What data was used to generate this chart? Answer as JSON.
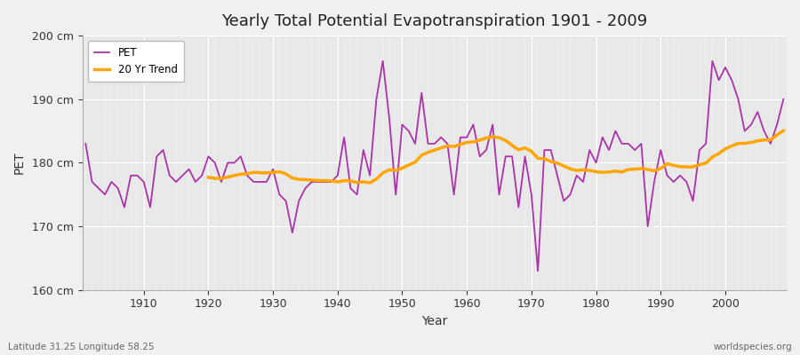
{
  "title": "Yearly Total Potential Evapotranspiration 1901 - 2009",
  "xlabel": "Year",
  "ylabel": "PET",
  "subtitle": "Latitude 31.25 Longitude 58.25",
  "watermark": "worldspecies.org",
  "pet_color": "#aa33aa",
  "trend_color": "#ffa500",
  "fig_bg_color": "#f0f0f0",
  "plot_bg_color": "#e8e8e8",
  "ylim": [
    160,
    200
  ],
  "yticks": [
    160,
    170,
    180,
    190,
    200
  ],
  "ytick_labels": [
    "160 cm",
    "170 cm",
    "180 cm",
    "190 cm",
    "200 cm"
  ],
  "years": [
    1901,
    1902,
    1903,
    1904,
    1905,
    1906,
    1907,
    1908,
    1909,
    1910,
    1911,
    1912,
    1913,
    1914,
    1915,
    1916,
    1917,
    1918,
    1919,
    1920,
    1921,
    1922,
    1923,
    1924,
    1925,
    1926,
    1927,
    1928,
    1929,
    1930,
    1931,
    1932,
    1933,
    1934,
    1935,
    1936,
    1937,
    1938,
    1939,
    1940,
    1941,
    1942,
    1943,
    1944,
    1945,
    1946,
    1947,
    1948,
    1949,
    1950,
    1951,
    1952,
    1953,
    1954,
    1955,
    1956,
    1957,
    1958,
    1959,
    1960,
    1961,
    1962,
    1963,
    1964,
    1965,
    1966,
    1967,
    1968,
    1969,
    1970,
    1971,
    1972,
    1973,
    1974,
    1975,
    1976,
    1977,
    1978,
    1979,
    1980,
    1981,
    1982,
    1983,
    1984,
    1985,
    1986,
    1987,
    1988,
    1989,
    1990,
    1991,
    1992,
    1993,
    1994,
    1995,
    1996,
    1997,
    1998,
    1999,
    2000,
    2001,
    2002,
    2003,
    2004,
    2005,
    2006,
    2007,
    2008,
    2009
  ],
  "pet_values": [
    183,
    177,
    176,
    175,
    177,
    176,
    173,
    178,
    178,
    177,
    173,
    181,
    182,
    178,
    177,
    178,
    179,
    177,
    178,
    181,
    180,
    177,
    180,
    180,
    181,
    178,
    177,
    177,
    177,
    179,
    175,
    174,
    169,
    174,
    176,
    177,
    177,
    177,
    177,
    178,
    184,
    176,
    175,
    182,
    178,
    190,
    196,
    187,
    175,
    186,
    185,
    183,
    191,
    183,
    183,
    184,
    183,
    175,
    184,
    184,
    186,
    181,
    182,
    186,
    175,
    181,
    181,
    173,
    181,
    175,
    163,
    182,
    182,
    178,
    174,
    175,
    178,
    177,
    182,
    180,
    184,
    182,
    185,
    183,
    183,
    182,
    183,
    170,
    177,
    182,
    178,
    177,
    178,
    177,
    174,
    182,
    183,
    196,
    193,
    195,
    193,
    190,
    185,
    186,
    188,
    185,
    183,
    186,
    190
  ]
}
